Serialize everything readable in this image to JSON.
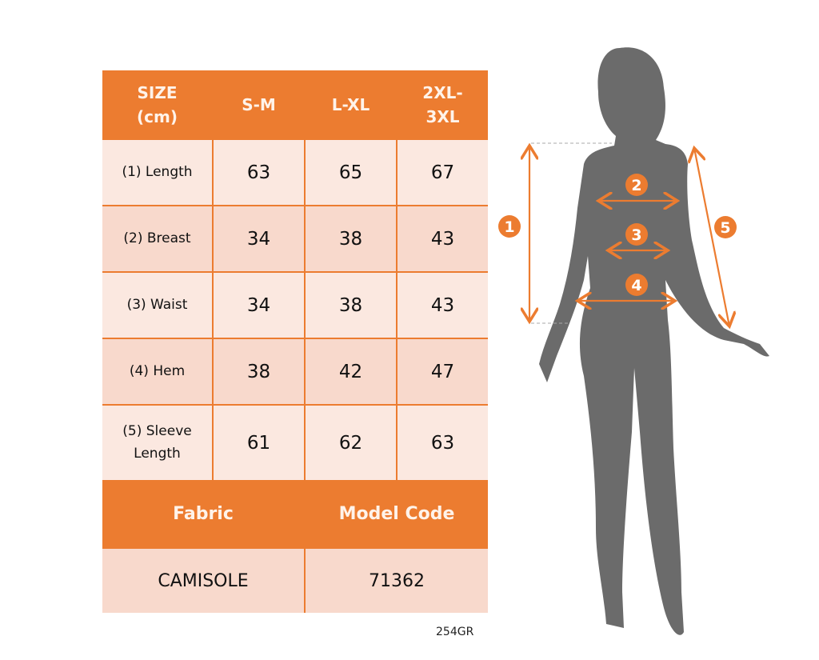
{
  "table": {
    "headers": [
      "SIZE\n(cm)",
      "S-M",
      "L-XL",
      "2XL-\n3XL"
    ],
    "rows": [
      {
        "label": "(1) Length",
        "values": [
          "63",
          "65",
          "67"
        ]
      },
      {
        "label": "(2) Breast",
        "values": [
          "34",
          "38",
          "43"
        ]
      },
      {
        "label": "(3) Waist",
        "values": [
          "34",
          "38",
          "43"
        ]
      },
      {
        "label": "(4) Hem",
        "values": [
          "38",
          "42",
          "47"
        ]
      },
      {
        "label": "(5) Sleeve\nLength",
        "values": [
          "61",
          "62",
          "63"
        ]
      }
    ],
    "fabric_label": "Fabric",
    "model_code_label": "Model Code",
    "fabric": "CAMISOLE",
    "model_code": "71362"
  },
  "product_code": "254GR",
  "figure": {
    "markers": [
      "1",
      "2",
      "3",
      "4",
      "5"
    ]
  },
  "colors": {
    "accent": "#ec7c30",
    "silhouette": "#6b6b6b",
    "cell": "#f8d9cc"
  }
}
